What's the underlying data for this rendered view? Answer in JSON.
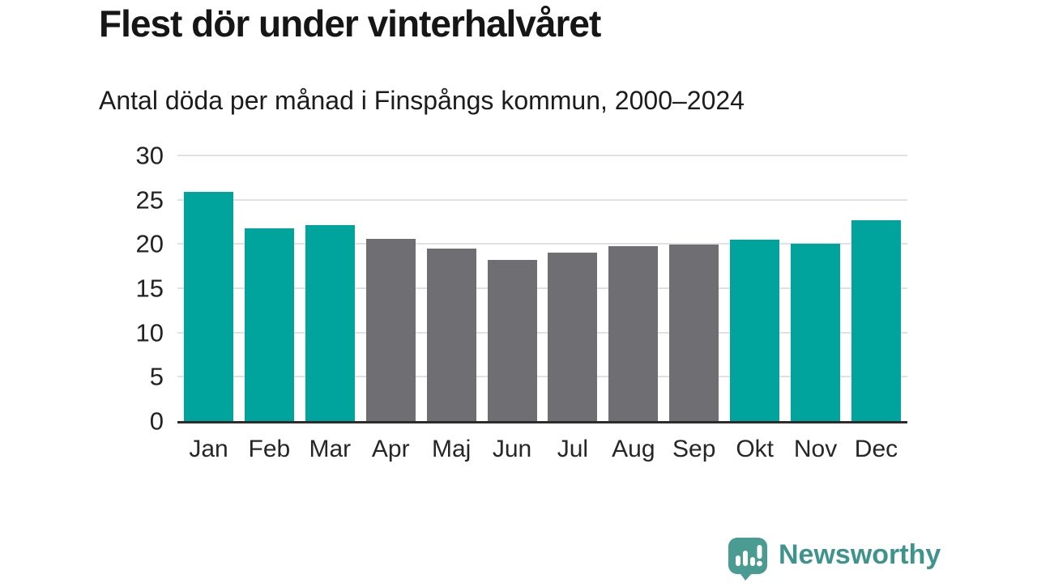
{
  "header": {
    "title": "Flest dör under vinterhalvåret",
    "subtitle": "Antal döda per månad i Finspångs kommun, 2000–2024"
  },
  "chart_data": {
    "type": "bar",
    "title": "Flest dör under vinterhalvåret",
    "subtitle": "Antal döda per månad i Finspångs kommun, 2000–2024",
    "categories": [
      "Jan",
      "Feb",
      "Mar",
      "Apr",
      "Maj",
      "Jun",
      "Jul",
      "Aug",
      "Sep",
      "Okt",
      "Nov",
      "Dec"
    ],
    "values": [
      25.9,
      21.8,
      22.1,
      20.6,
      19.5,
      18.2,
      19.0,
      19.8,
      19.9,
      20.5,
      20.0,
      22.7
    ],
    "bar_colors": [
      "teal",
      "teal",
      "teal",
      "gray",
      "gray",
      "gray",
      "gray",
      "gray",
      "gray",
      "teal",
      "teal",
      "teal"
    ],
    "colors": {
      "teal": "#00a49c",
      "gray": "#6e6e73"
    },
    "xlabel": "",
    "ylabel": "",
    "ylim": [
      0,
      30
    ],
    "yticks": [
      0,
      5,
      10,
      15,
      20,
      25,
      30
    ],
    "grid": true,
    "legend": false,
    "gridline_color": "#e1e1e1",
    "axis_color": "#2d2d2d"
  },
  "footer": {
    "brand": "Newsworthy",
    "brand_color": "#3e948c",
    "logo_icon": "bar-chart-speech-bubble-icon",
    "logo_color": "#4a9b91"
  }
}
